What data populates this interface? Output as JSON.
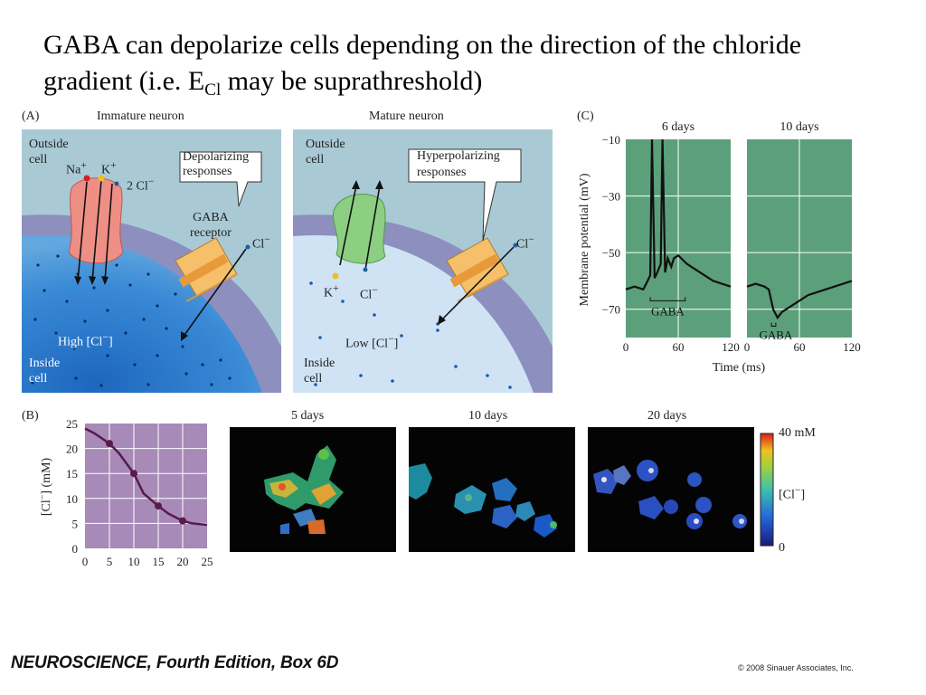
{
  "slide": {
    "title_part1": "GABA can depolarize cells depending on the direction of the chloride gradient (i.e. E",
    "title_sub": "Cl",
    "title_part2": " may be suprathreshold)"
  },
  "panel_a": {
    "label": "(A)",
    "immature": {
      "title": "Immature neuron",
      "outside": [
        "Outside",
        "cell"
      ],
      "ion_na": "Na",
      "ion_k": "K",
      "ion_cl2": "2 Cl",
      "callout": [
        "Depolarizing",
        "responses"
      ],
      "receptor": [
        "GABA",
        "receptor"
      ],
      "cl_label": "Cl",
      "high": "High [Cl",
      "inside": [
        "Inside",
        "cell"
      ]
    },
    "mature": {
      "title": "Mature neuron",
      "outside": [
        "Outside",
        "cell"
      ],
      "callout": [
        "Hyperpolarizing",
        "responses"
      ],
      "cl_label": "Cl",
      "k_label": "K",
      "cl_in_label": "Cl",
      "low": "Low [Cl",
      "inside": [
        "Inside",
        "cell"
      ]
    },
    "sup_plus": "+",
    "sup_minus": "−",
    "close_bracket": "]",
    "colors": {
      "outside": "#a9cad5",
      "membrane": "#8d8fbf",
      "inside_immature": "#2f7fcf",
      "inside_mature": "#cfe3f5",
      "cotransporter_a": "#ee8f86",
      "cotransporter_b": "#8ccf82",
      "receptor": "#f6bf6a"
    }
  },
  "panel_c": {
    "label": "(C)",
    "subtitles": [
      "6 days",
      "10 days"
    ],
    "ylabel": "Membrane potential (mV)",
    "yticks": [
      "−10",
      "−30",
      "−50",
      "−70"
    ],
    "xticks_left": [
      "0",
      "60",
      "120"
    ],
    "xticks_right": [
      "0",
      "60",
      "120"
    ],
    "xlabel": "Time (ms)",
    "gaba_label": "GABA",
    "bg_color": "#5c9f7b",
    "ylim": [
      -80,
      -10
    ],
    "xlim": [
      0,
      120
    ]
  },
  "panel_b": {
    "label": "(B)",
    "ylabel": "[Cl",
    "ylabel_unit": "] (mM)",
    "ylim": [
      0,
      25
    ],
    "xlim": [
      0,
      25
    ],
    "yticks": [
      "0",
      "5",
      "10",
      "15",
      "20",
      "25"
    ],
    "xticks": [
      "0",
      "5",
      "10",
      "15",
      "20",
      "25"
    ],
    "bg_color": "#a78ab8",
    "image_titles": [
      "5 days",
      "10 days",
      "20 days"
    ],
    "colorbar_top": "40 mM",
    "colorbar_mid": "[Cl",
    "colorbar_bottom": "0"
  },
  "chart_data": [
    {
      "type": "line",
      "panel": "C-6 days",
      "xlabel": "Time (ms)",
      "ylabel": "Membrane potential (mV)",
      "xlim": [
        0,
        120
      ],
      "ylim": [
        -80,
        -10
      ],
      "x": [
        0,
        10,
        20,
        25,
        28,
        30,
        33,
        36,
        40,
        42,
        45,
        48,
        52,
        55,
        60,
        70,
        80,
        90,
        100,
        110,
        120
      ],
      "y": [
        -63,
        -62,
        -63,
        -60,
        -58,
        -10,
        -59,
        -57,
        -54,
        -10,
        -57,
        -52,
        -55,
        -52,
        -51,
        -54,
        -56,
        -58,
        -60,
        -61,
        -62
      ]
    },
    {
      "type": "line",
      "panel": "C-10 days",
      "xlabel": "Time (ms)",
      "ylabel": "Membrane potential (mV)",
      "xlim": [
        0,
        120
      ],
      "ylim": [
        -80,
        -10
      ],
      "x": [
        0,
        10,
        20,
        25,
        30,
        35,
        40,
        45,
        50,
        60,
        70,
        80,
        90,
        100,
        110,
        120
      ],
      "y": [
        -62,
        -61,
        -62,
        -63,
        -70,
        -73,
        -71,
        -70,
        -69,
        -67,
        -65,
        -64,
        -63,
        -62,
        -61,
        -60
      ]
    },
    {
      "type": "line",
      "panel": "B",
      "xlabel": "",
      "ylabel": "[Cl−] (mM)",
      "xlim": [
        0,
        25
      ],
      "ylim": [
        0,
        25
      ],
      "x": [
        0,
        2,
        5,
        7,
        10,
        12,
        15,
        17,
        20,
        22,
        25
      ],
      "y": [
        24,
        23,
        21,
        19,
        15,
        11,
        8.5,
        7,
        5.5,
        5,
        4.7
      ],
      "markers_x": [
        5,
        10,
        15,
        20
      ],
      "markers_y": [
        21,
        15,
        8.5,
        5.5
      ]
    }
  ],
  "footer": {
    "book": "NEUROSCIENCE, Fourth Edition, Box 6D",
    "copyright": "© 2008 Sinauer Associates, Inc."
  }
}
